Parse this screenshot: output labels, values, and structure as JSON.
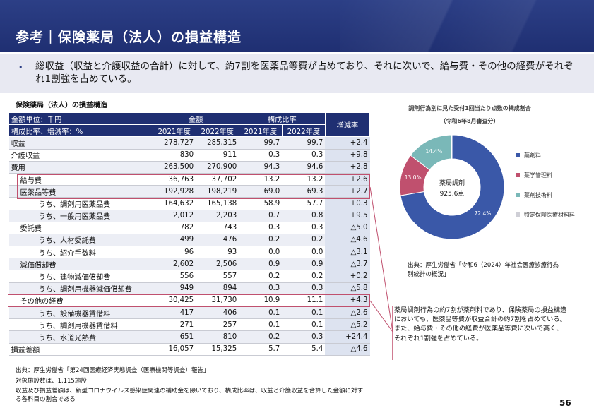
{
  "header": {
    "title": "参考｜保険薬局（法人）の損益構造"
  },
  "summary": {
    "bullet": "•",
    "text": "総収益（収益と介護収益の合計）に対して、約7割を医薬品等費が占めており、それに次いで、給与費・その他の経費がそれぞれ1割強を占めている。"
  },
  "table": {
    "title": "保険薬局（法人）の損益構造",
    "head": {
      "unit_label": "金額単位：千円",
      "ratio_label": "構成比率、増減率：%",
      "amount": "金額",
      "ratio": "構成比率",
      "change": "増減率",
      "y2021": "2021年度",
      "y2022": "2022年度",
      "y2021b": "2021年度",
      "y2022b": "2022年度"
    },
    "rows": [
      {
        "label": "収益",
        "a21": "278,727",
        "a22": "285,315",
        "r21": "99.7",
        "r22": "99.7",
        "chg": "+2.4"
      },
      {
        "label": "介護収益",
        "a21": "830",
        "a22": "911",
        "r21": "0.3",
        "r22": "0.3",
        "chg": "+9.8"
      },
      {
        "label": "費用",
        "a21": "263,500",
        "a22": "270,900",
        "r21": "94.3",
        "r22": "94.6",
        "chg": "+2.8"
      },
      {
        "label": "給与費",
        "a21": "36,763",
        "a22": "37,702",
        "r21": "13.2",
        "r22": "13.2",
        "chg": "+2.6"
      },
      {
        "label": "医薬品等費",
        "a21": "192,928",
        "a22": "198,219",
        "r21": "69.0",
        "r22": "69.3",
        "chg": "+2.7"
      },
      {
        "label": "うち、調剤用医薬品費",
        "a21": "164,632",
        "a22": "165,138",
        "r21": "58.9",
        "r22": "57.7",
        "chg": "+0.3"
      },
      {
        "label": "うち、一般用医薬品費",
        "a21": "2,012",
        "a22": "2,203",
        "r21": "0.7",
        "r22": "0.8",
        "chg": "+9.5"
      },
      {
        "label": "委託費",
        "a21": "782",
        "a22": "743",
        "r21": "0.3",
        "r22": "0.3",
        "chg": "△5.0"
      },
      {
        "label": "うち、人材委託費",
        "a21": "499",
        "a22": "476",
        "r21": "0.2",
        "r22": "0.2",
        "chg": "△4.6"
      },
      {
        "label": "うち、紹介手数料",
        "a21": "96",
        "a22": "93",
        "r21": "0.0",
        "r22": "0.0",
        "chg": "△3.1"
      },
      {
        "label": "減価償却費",
        "a21": "2,602",
        "a22": "2,506",
        "r21": "0.9",
        "r22": "0.9",
        "chg": "△3.7"
      },
      {
        "label": "うち、建物減価償却費",
        "a21": "556",
        "a22": "557",
        "r21": "0.2",
        "r22": "0.2",
        "chg": "+0.2"
      },
      {
        "label": "うち、調剤用機器減価償却費",
        "a21": "949",
        "a22": "894",
        "r21": "0.3",
        "r22": "0.3",
        "chg": "△5.8"
      },
      {
        "label": "その他の経費",
        "a21": "30,425",
        "a22": "31,730",
        "r21": "10.9",
        "r22": "11.1",
        "chg": "+4.3"
      },
      {
        "label": "うち、設備機器賃借料",
        "a21": "417",
        "a22": "406",
        "r21": "0.1",
        "r22": "0.1",
        "chg": "△2.6"
      },
      {
        "label": "うち、調剤用機器賃借料",
        "a21": "271",
        "a22": "257",
        "r21": "0.1",
        "r22": "0.1",
        "chg": "△5.2"
      },
      {
        "label": "うち、水道光熱費",
        "a21": "651",
        "a22": "810",
        "r21": "0.2",
        "r22": "0.3",
        "chg": "+24.4"
      },
      {
        "label": "損益差額",
        "a21": "16,057",
        "a22": "15,325",
        "r21": "5.7",
        "r22": "5.4",
        "chg": "△4.6"
      }
    ]
  },
  "footnotes": {
    "source": "出典：厚生労働省「第24回医療経済実態調査（医療機関等調査）報告」",
    "count": "対象施設数は、1,115施設",
    "note": "収益及び損益差額は、新型コロナウイルス感染症関連の補助金を除いており、構成比率は、収益と介護収益を合算した金額に対する各科目の割合である"
  },
  "chart_data": {
    "type": "pie",
    "title": "調剤行為別に見た受付1回当たり点数の構成割合",
    "subtitle": "（令和6年8月審査分）",
    "center_label": "薬局調剤",
    "center_value": "925.6点",
    "categories": [
      "薬剤料",
      "薬学管理料",
      "薬剤技術料",
      "特定保険医療材料料"
    ],
    "values": [
      72.4,
      13.0,
      14.4,
      0.2
    ],
    "value_labels": [
      "72.4%",
      "13.0%",
      "14.4%",
      "0.2%"
    ],
    "colors": [
      "#3a58a8",
      "#c0506e",
      "#7ab8b8",
      "#cfcfd6"
    ],
    "legend_position": "right"
  },
  "chart_source": "出典：厚生労働省「令和6（2024）年社会医療診療行為別統計の概況」",
  "callout": "薬局調剤行為の約7割が薬剤料であり、保険薬局の損益構造においても、医薬品等費が収益合計の約7割を占めている。また、給与費・その他の経費が医薬品等費に次いで高く、それぞれ1割強を占めている。",
  "page_number": "56"
}
